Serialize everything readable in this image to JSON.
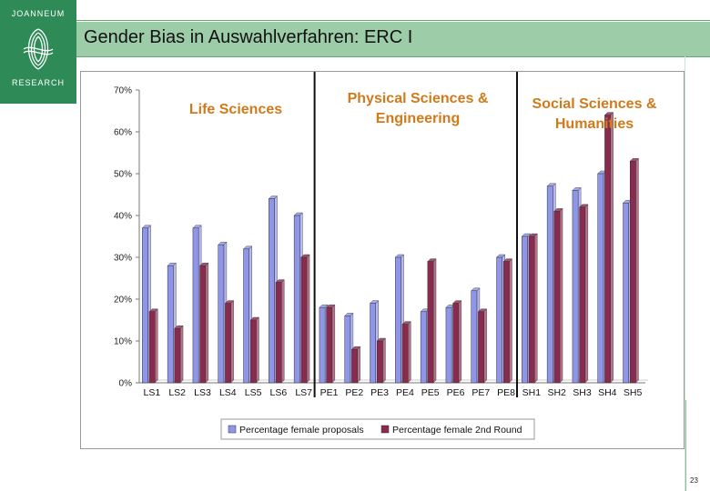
{
  "logo": {
    "top_text": "JOANNEUM",
    "bottom_text": "RESEARCH"
  },
  "header": {
    "title": "Gender Bias in Auswahlverfahren: ERC I"
  },
  "page": {
    "number": "23"
  },
  "colors": {
    "proposals": "#8f95e8",
    "second_round": "#8a2a4e",
    "header_bg": "#9ccda8",
    "logo_bg": "#2e8b57",
    "section_label": "#d07a1a"
  },
  "chart_data": {
    "type": "bar",
    "categories": [
      "LS1",
      "LS2",
      "LS3",
      "LS4",
      "LS5",
      "LS6",
      "LS7",
      "PE1",
      "PE2",
      "PE3",
      "PE4",
      "PE5",
      "PE6",
      "PE7",
      "PE8",
      "SH1",
      "SH2",
      "SH3",
      "SH4",
      "SH5"
    ],
    "series": [
      {
        "name": "Percentage female proposals",
        "values": [
          37,
          28,
          37,
          33,
          32,
          44,
          40,
          18,
          16,
          19,
          30,
          17,
          18,
          22,
          30,
          35,
          47,
          46,
          50,
          43
        ]
      },
      {
        "name": "Percentage female 2nd Round",
        "values": [
          17,
          13,
          28,
          19,
          15,
          24,
          30,
          18,
          8,
          10,
          14,
          29,
          19,
          17,
          29,
          35,
          41,
          42,
          64,
          53
        ]
      }
    ],
    "ylim": [
      0,
      70
    ],
    "yticks": [
      "0%",
      "10%",
      "20%",
      "30%",
      "40%",
      "50%",
      "60%",
      "70%"
    ],
    "sections": [
      {
        "label_lines": [
          "Life Sciences"
        ]
      },
      {
        "label_lines": [
          "Physical Sciences &",
          "Engineering"
        ]
      },
      {
        "label_lines": [
          "Social Sciences &",
          "Humanities"
        ]
      }
    ],
    "separators_after": [
      "LS7",
      "PE8"
    ],
    "legend_position": "bottom",
    "grid": false
  }
}
